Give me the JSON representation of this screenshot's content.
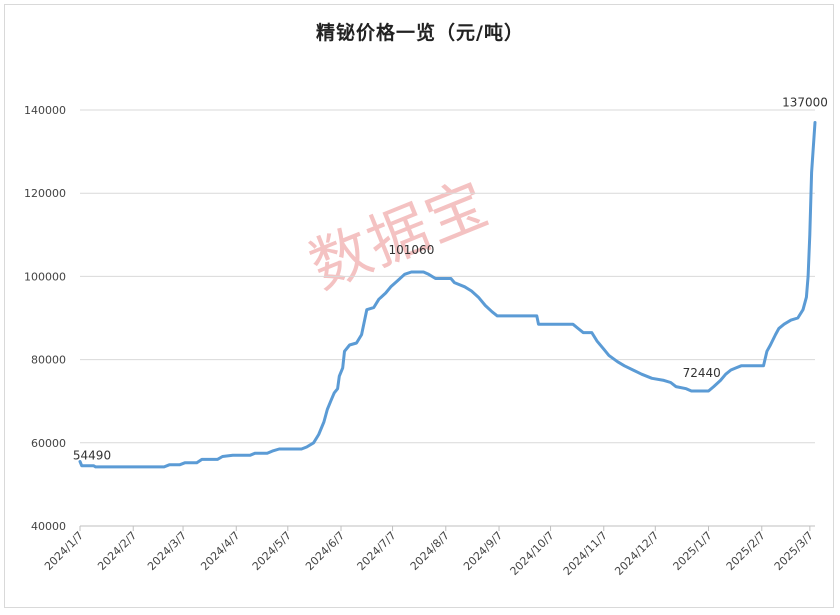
{
  "chart_data": {
    "type": "line",
    "title": "精铋价格一览（元/吨）",
    "watermark": "数据宝",
    "ylim": [
      40000,
      140000
    ],
    "yticks": [
      "40000",
      "60000",
      "80000",
      "100000",
      "120000",
      "140000"
    ],
    "x_range": [
      "2024-01-07",
      "2025-03-10"
    ],
    "xticks": [
      {
        "label": "2024/1/7",
        "date": "2024-01-07"
      },
      {
        "label": "2024/2/7",
        "date": "2024-02-07"
      },
      {
        "label": "2024/3/7",
        "date": "2024-03-07"
      },
      {
        "label": "2024/4/7",
        "date": "2024-04-07"
      },
      {
        "label": "2024/5/7",
        "date": "2024-05-07"
      },
      {
        "label": "2024/6/7",
        "date": "2024-06-07"
      },
      {
        "label": "2024/7/7",
        "date": "2024-07-07"
      },
      {
        "label": "2024/8/7",
        "date": "2024-08-07"
      },
      {
        "label": "2024/9/7",
        "date": "2024-09-07"
      },
      {
        "label": "2024/10/7",
        "date": "2024-10-07"
      },
      {
        "label": "2024/11/7",
        "date": "2024-11-07"
      },
      {
        "label": "2024/12/7",
        "date": "2024-12-07"
      },
      {
        "label": "2025/1/7",
        "date": "2025-01-07"
      },
      {
        "label": "2025/2/7",
        "date": "2025-02-07"
      },
      {
        "label": "2025/3/7",
        "date": "2025-03-07"
      }
    ],
    "grid": true,
    "line_color": "#5b9bd5",
    "series": [
      {
        "points": [
          [
            "2024-01-07",
            55500
          ],
          [
            "2024-01-08",
            54490
          ],
          [
            "2024-01-15",
            54490
          ],
          [
            "2024-01-16",
            54200
          ],
          [
            "2024-02-25",
            54200
          ],
          [
            "2024-02-28",
            54700
          ],
          [
            "2024-03-05",
            54700
          ],
          [
            "2024-03-08",
            55200
          ],
          [
            "2024-03-15",
            55200
          ],
          [
            "2024-03-18",
            56000
          ],
          [
            "2024-03-27",
            56000
          ],
          [
            "2024-03-30",
            56700
          ],
          [
            "2024-04-05",
            57000
          ],
          [
            "2024-04-15",
            57000
          ],
          [
            "2024-04-18",
            57500
          ],
          [
            "2024-04-25",
            57500
          ],
          [
            "2024-04-28",
            58000
          ],
          [
            "2024-05-02",
            58500
          ],
          [
            "2024-05-15",
            58500
          ],
          [
            "2024-05-18",
            59000
          ],
          [
            "2024-05-22",
            60000
          ],
          [
            "2024-05-25",
            62000
          ],
          [
            "2024-05-28",
            65000
          ],
          [
            "2024-05-30",
            68000
          ],
          [
            "2024-06-01",
            70000
          ],
          [
            "2024-06-03",
            72000
          ],
          [
            "2024-06-05",
            73000
          ],
          [
            "2024-06-06",
            76000
          ],
          [
            "2024-06-08",
            78000
          ],
          [
            "2024-06-09",
            82000
          ],
          [
            "2024-06-12",
            83500
          ],
          [
            "2024-06-16",
            84000
          ],
          [
            "2024-06-19",
            86000
          ],
          [
            "2024-06-22",
            92000
          ],
          [
            "2024-06-26",
            92500
          ],
          [
            "2024-06-29",
            94500
          ],
          [
            "2024-07-03",
            96000
          ],
          [
            "2024-07-06",
            97500
          ],
          [
            "2024-07-10",
            99000
          ],
          [
            "2024-07-14",
            100500
          ],
          [
            "2024-07-18",
            101060
          ],
          [
            "2024-07-25",
            101060
          ],
          [
            "2024-07-28",
            100500
          ],
          [
            "2024-08-01",
            99500
          ],
          [
            "2024-08-10",
            99500
          ],
          [
            "2024-08-12",
            98500
          ],
          [
            "2024-08-18",
            97500
          ],
          [
            "2024-08-22",
            96500
          ],
          [
            "2024-08-26",
            95000
          ],
          [
            "2024-08-30",
            93000
          ],
          [
            "2024-09-03",
            91500
          ],
          [
            "2024-09-06",
            90500
          ],
          [
            "2024-09-29",
            90500
          ],
          [
            "2024-09-30",
            88500
          ],
          [
            "2024-10-20",
            88500
          ],
          [
            "2024-10-23",
            87500
          ],
          [
            "2024-10-26",
            86500
          ],
          [
            "2024-10-31",
            86500
          ],
          [
            "2024-11-03",
            84500
          ],
          [
            "2024-11-07",
            82500
          ],
          [
            "2024-11-10",
            81000
          ],
          [
            "2024-11-15",
            79500
          ],
          [
            "2024-11-19",
            78500
          ],
          [
            "2024-11-24",
            77500
          ],
          [
            "2024-11-29",
            76500
          ],
          [
            "2024-12-05",
            75500
          ],
          [
            "2024-12-12",
            75000
          ],
          [
            "2024-12-16",
            74500
          ],
          [
            "2024-12-19",
            73500
          ],
          [
            "2024-12-25",
            73000
          ],
          [
            "2024-12-28",
            72440
          ],
          [
            "2025-01-07",
            72440
          ],
          [
            "2025-01-10",
            73500
          ],
          [
            "2025-01-14",
            75000
          ],
          [
            "2025-01-17",
            76500
          ],
          [
            "2025-01-20",
            77500
          ],
          [
            "2025-01-23",
            78000
          ],
          [
            "2025-01-26",
            78500
          ],
          [
            "2025-02-08",
            78500
          ],
          [
            "2025-02-10",
            82000
          ],
          [
            "2025-02-12",
            83500
          ],
          [
            "2025-02-15",
            86000
          ],
          [
            "2025-02-17",
            87500
          ],
          [
            "2025-02-20",
            88500
          ],
          [
            "2025-02-24",
            89500
          ],
          [
            "2025-02-28",
            90000
          ],
          [
            "2025-03-03",
            92000
          ],
          [
            "2025-03-05",
            95000
          ],
          [
            "2025-03-06",
            100000
          ],
          [
            "2025-03-07",
            110000
          ],
          [
            "2025-03-08",
            125000
          ],
          [
            "2025-03-10",
            137000
          ]
        ]
      }
    ],
    "data_labels": [
      {
        "text": "54490",
        "date": "2024-01-07",
        "value": 54490
      },
      {
        "text": "101060",
        "date": "2024-07-18",
        "value": 101060
      },
      {
        "text": "72440",
        "date": "2025-01-03",
        "value": 72440
      },
      {
        "text": "137000",
        "date": "2025-03-10",
        "value": 137000
      }
    ]
  }
}
